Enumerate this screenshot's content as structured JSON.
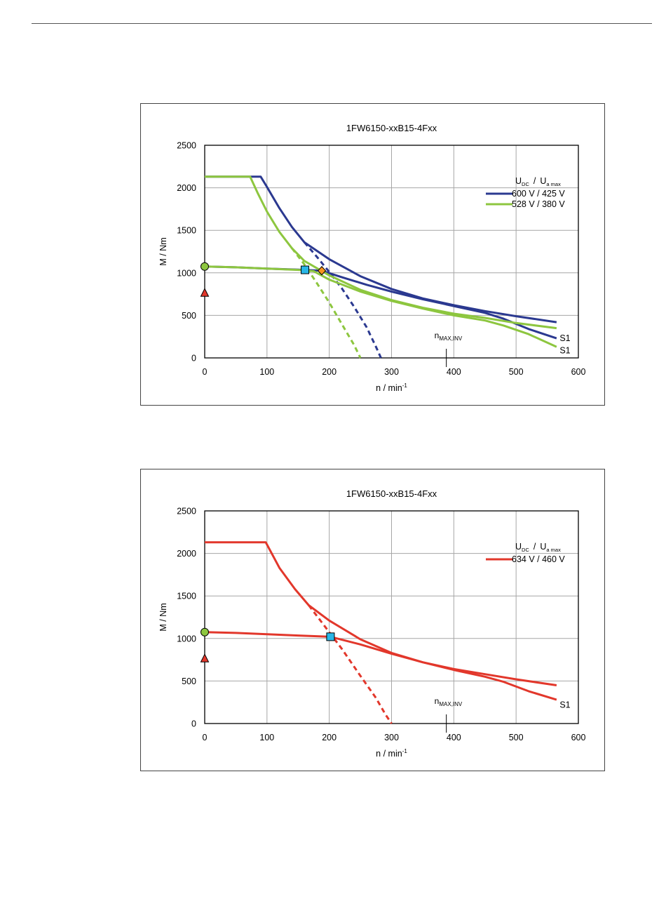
{
  "chart_data": [
    {
      "type": "line",
      "title": "1FW6150-xxB15-4Fxx",
      "xlabel": "n / min",
      "xlabel_sup": "-1",
      "ylabel": "M / Nm",
      "xlim": [
        0,
        600
      ],
      "ylim": [
        0,
        2500
      ],
      "xticks": [
        0,
        100,
        200,
        300,
        400,
        500,
        600
      ],
      "yticks": [
        0,
        500,
        1000,
        1500,
        2000,
        2500
      ],
      "grid": true,
      "legend_position": "top-right",
      "legend_header": {
        "a": "U",
        "a_sub": "DC",
        "sep": "/",
        "b": "U",
        "b_sub": "a max"
      },
      "nmax_label": {
        "main": "n",
        "sub": "MAX,INV",
        "x": 388
      },
      "series": [
        {
          "name": "600 V / 425 V",
          "color": "#2b3990",
          "style": "solid",
          "x": [
            0,
            90,
            100,
            120,
            140,
            160,
            200,
            250,
            300,
            350,
            400,
            450,
            500,
            565
          ],
          "y": [
            2130,
            2130,
            2010,
            1760,
            1540,
            1360,
            1160,
            960,
            810,
            700,
            620,
            550,
            490,
            420
          ]
        },
        {
          "name": "",
          "color": "#2b3990",
          "style": "solid",
          "x": [
            0,
            50,
            100,
            150,
            188,
            220,
            260,
            300,
            350,
            400,
            450,
            480,
            520,
            565
          ],
          "y": [
            1075,
            1065,
            1050,
            1038,
            1025,
            950,
            860,
            780,
            690,
            610,
            530,
            460,
            340,
            230
          ]
        },
        {
          "name": "",
          "color": "#2b3990",
          "style": "dashed",
          "x": [
            160,
            180,
            200,
            220,
            240,
            260,
            275,
            283
          ],
          "y": [
            1360,
            1190,
            1010,
            820,
            600,
            360,
            130,
            0
          ]
        },
        {
          "name": "528 V / 380 V",
          "color": "#8dc63f",
          "style": "solid",
          "x": [
            0,
            73,
            85,
            100,
            120,
            140,
            160,
            200,
            250,
            300,
            350,
            400,
            450,
            500,
            565
          ],
          "y": [
            2130,
            2130,
            1940,
            1720,
            1480,
            1290,
            1140,
            970,
            800,
            680,
            590,
            520,
            470,
            410,
            350
          ]
        },
        {
          "name": "",
          "color": "#8dc63f",
          "style": "solid",
          "x": [
            0,
            50,
            100,
            150,
            175,
            200,
            250,
            300,
            350,
            400,
            450,
            480,
            520,
            565
          ],
          "y": [
            1075,
            1065,
            1050,
            1035,
            1020,
            920,
            780,
            670,
            580,
            500,
            440,
            380,
            280,
            130
          ]
        },
        {
          "name": "",
          "color": "#8dc63f",
          "style": "dashed",
          "x": [
            140,
            160,
            180,
            200,
            220,
            240,
            250
          ],
          "y": [
            1290,
            1100,
            880,
            650,
            400,
            150,
            0
          ]
        }
      ],
      "markers": [
        {
          "shape": "circle",
          "x": 0,
          "y": 1075,
          "color": "#8dc63f"
        },
        {
          "shape": "triangle",
          "x": 0,
          "y": 765,
          "color": "#e2372b"
        },
        {
          "shape": "square",
          "x": 161,
          "y": 1035,
          "color": "#29b6e6"
        },
        {
          "shape": "diamond",
          "x": 188,
          "y": 1025,
          "color": "#f7941d"
        }
      ],
      "s1_labels": [
        {
          "text": "S1",
          "x": 570,
          "y": 230
        },
        {
          "text": "S1",
          "x": 570,
          "y": 85
        }
      ]
    },
    {
      "type": "line",
      "title": "1FW6150-xxB15-4Fxx",
      "xlabel": "n / min",
      "xlabel_sup": "-1",
      "ylabel": "M / Nm",
      "xlim": [
        0,
        600
      ],
      "ylim": [
        0,
        2500
      ],
      "xticks": [
        0,
        100,
        200,
        300,
        400,
        500,
        600
      ],
      "yticks": [
        0,
        500,
        1000,
        1500,
        2000,
        2500
      ],
      "grid": true,
      "legend_position": "top-right",
      "legend_header": {
        "a": "U",
        "a_sub": "DC",
        "sep": "/",
        "b": "U",
        "b_sub": "a max"
      },
      "nmax_label": {
        "main": "n",
        "sub": "MAX,INV",
        "x": 388
      },
      "series": [
        {
          "name": "634 V / 460 V",
          "color": "#e2372b",
          "style": "solid",
          "x": [
            0,
            98,
            120,
            145,
            167,
            200,
            250,
            300,
            350,
            400,
            450,
            500,
            565
          ],
          "y": [
            2130,
            2130,
            1830,
            1580,
            1390,
            1210,
            990,
            830,
            720,
            640,
            580,
            520,
            450
          ]
        },
        {
          "name": "",
          "color": "#e2372b",
          "style": "solid",
          "x": [
            0,
            50,
            100,
            150,
            202,
            250,
            300,
            350,
            400,
            450,
            480,
            520,
            565
          ],
          "y": [
            1075,
            1065,
            1050,
            1035,
            1020,
            930,
            820,
            720,
            630,
            550,
            490,
            380,
            280
          ]
        },
        {
          "name": "",
          "color": "#e2372b",
          "style": "dashed",
          "x": [
            167,
            190,
            220,
            250,
            275,
            290,
            300
          ],
          "y": [
            1390,
            1170,
            880,
            560,
            300,
            110,
            0
          ]
        }
      ],
      "markers": [
        {
          "shape": "circle",
          "x": 0,
          "y": 1075,
          "color": "#8dc63f"
        },
        {
          "shape": "triangle",
          "x": 0,
          "y": 765,
          "color": "#e2372b"
        },
        {
          "shape": "square",
          "x": 202,
          "y": 1020,
          "color": "#29b6e6"
        }
      ],
      "s1_labels": [
        {
          "text": "S1",
          "x": 570,
          "y": 220
        }
      ]
    }
  ]
}
